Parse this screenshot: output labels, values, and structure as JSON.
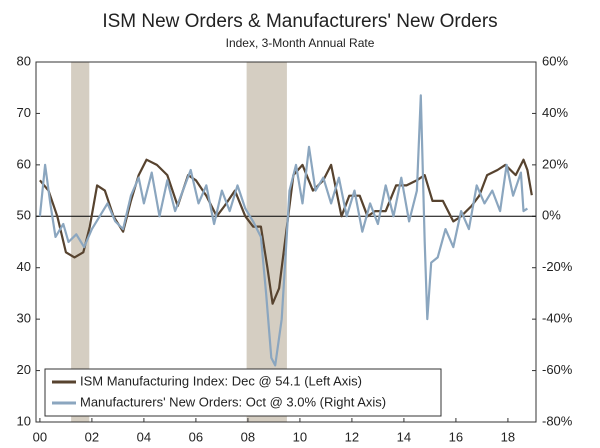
{
  "chart_data": {
    "type": "line",
    "title": "ISM New Orders & Manufacturers' New Orders",
    "subtitle": "Index, 3-Month Annual Rate",
    "xlim": [
      1999.85,
      2019.08
    ],
    "xticks": [
      {
        "value": 2000,
        "label": "00"
      },
      {
        "value": 2002,
        "label": "02"
      },
      {
        "value": 2004,
        "label": "04"
      },
      {
        "value": 2006,
        "label": "06"
      },
      {
        "value": 2008,
        "label": "08"
      },
      {
        "value": 2010,
        "label": "10"
      },
      {
        "value": 2012,
        "label": "12"
      },
      {
        "value": 2014,
        "label": "14"
      },
      {
        "value": 2016,
        "label": "16"
      },
      {
        "value": 2018,
        "label": "18"
      }
    ],
    "ylim": [
      10,
      80
    ],
    "yticks": [
      10,
      20,
      30,
      40,
      50,
      60,
      70,
      80
    ],
    "y2lim": [
      -80,
      60
    ],
    "y2ticks": [
      {
        "value": -80,
        "label": "-80%"
      },
      {
        "value": -60,
        "label": "-60%"
      },
      {
        "value": -40,
        "label": "-40%"
      },
      {
        "value": -20,
        "label": "-20%"
      },
      {
        "value": 0,
        "label": "0%"
      },
      {
        "value": 20,
        "label": "20%"
      },
      {
        "value": 40,
        "label": "40%"
      },
      {
        "value": 60,
        "label": "60%"
      }
    ],
    "recessions": [
      [
        2001.2,
        2001.9
      ],
      [
        2007.95,
        2009.5
      ]
    ],
    "recession_color": "#d5cec2",
    "legend": "lower left",
    "series": [
      {
        "name": "ISM Manufacturing Index: Dec @ 54.1 (Left Axis)",
        "color": "#57432f",
        "axis": "y",
        "x": [
          2000,
          2000.33,
          2000.67,
          2001.0,
          2001.33,
          2001.67,
          2001.92,
          2002.2,
          2002.5,
          2002.83,
          2003.2,
          2003.5,
          2003.8,
          2004.1,
          2004.5,
          2004.9,
          2005.3,
          2005.7,
          2006.0,
          2006.4,
          2006.8,
          2007.1,
          2007.5,
          2007.9,
          2008.2,
          2008.5,
          2008.75,
          2008.95,
          2009.2,
          2009.5,
          2009.75,
          2010.1,
          2010.5,
          2010.9,
          2011.2,
          2011.6,
          2011.9,
          2012.3,
          2012.6,
          2012.9,
          2013.3,
          2013.7,
          2014.1,
          2014.5,
          2014.8,
          2015.1,
          2015.5,
          2015.9,
          2016.2,
          2016.6,
          2016.9,
          2017.2,
          2017.6,
          2017.9,
          2018.3,
          2018.6,
          2018.75,
          2018.92
        ],
        "values": [
          57,
          55,
          50,
          43,
          42,
          43,
          48,
          56,
          55,
          50,
          47,
          53,
          58,
          61,
          60,
          58,
          52,
          58,
          57,
          54,
          50,
          52,
          55,
          50,
          48,
          48,
          40,
          33,
          36,
          48,
          58,
          60,
          55,
          57,
          60,
          50,
          54,
          54,
          50,
          51,
          51,
          56,
          56,
          57,
          58,
          53,
          53,
          49,
          50,
          52,
          54,
          58,
          59,
          60,
          58,
          61,
          59,
          54.1
        ]
      },
      {
        "name": "Manufacturers' New Orders: Oct @ 3.0% (Right Axis)",
        "color": "#8ba6bf",
        "axis": "y2",
        "x": [
          2000,
          2000.2,
          2000.4,
          2000.6,
          2000.9,
          2001.1,
          2001.4,
          2001.7,
          2002.0,
          2002.3,
          2002.6,
          2002.9,
          2003.2,
          2003.5,
          2003.8,
          2004.0,
          2004.3,
          2004.6,
          2004.9,
          2005.2,
          2005.5,
          2005.8,
          2006.1,
          2006.4,
          2006.7,
          2007.0,
          2007.3,
          2007.6,
          2007.9,
          2008.2,
          2008.5,
          2008.7,
          2008.9,
          2009.05,
          2009.3,
          2009.6,
          2009.85,
          2010.1,
          2010.35,
          2010.6,
          2010.9,
          2011.2,
          2011.5,
          2011.8,
          2012.1,
          2012.4,
          2012.7,
          2013.0,
          2013.3,
          2013.6,
          2013.9,
          2014.2,
          2014.5,
          2014.65,
          2014.8,
          2014.9,
          2015.05,
          2015.3,
          2015.6,
          2015.9,
          2016.2,
          2016.5,
          2016.8,
          2017.1,
          2017.4,
          2017.7,
          2017.95,
          2018.2,
          2018.5,
          2018.6,
          2018.75
        ],
        "values": [
          0,
          20,
          5,
          -8,
          -3,
          -10,
          -7,
          -12,
          -5,
          0,
          5,
          -2,
          -5,
          8,
          15,
          5,
          17,
          0,
          14,
          2,
          10,
          18,
          5,
          12,
          -3,
          10,
          2,
          12,
          3,
          -2,
          -8,
          -30,
          -55,
          -58,
          -40,
          10,
          20,
          5,
          27,
          10,
          15,
          5,
          15,
          0,
          10,
          -6,
          5,
          -3,
          12,
          0,
          15,
          -2,
          10,
          47,
          -10,
          -40,
          -18,
          -16,
          -5,
          -12,
          2,
          -5,
          12,
          5,
          10,
          2,
          20,
          8,
          17,
          2,
          3.0
        ]
      }
    ]
  }
}
